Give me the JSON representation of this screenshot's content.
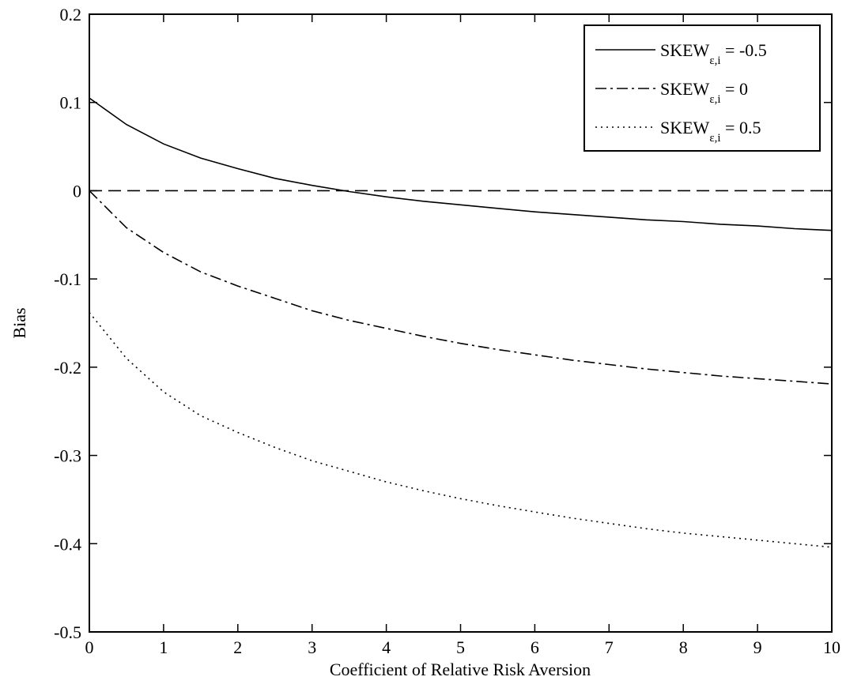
{
  "chart_data": {
    "type": "line",
    "title": "",
    "xlabel": "Coefficient of Relative Risk Aversion",
    "ylabel": "Bias",
    "xlim": [
      0,
      10
    ],
    "ylim": [
      -0.5,
      0.2
    ],
    "xticks": [
      0,
      1,
      2,
      3,
      4,
      5,
      6,
      7,
      8,
      9,
      10
    ],
    "xtick_labels": [
      "0",
      "1",
      "2",
      "3",
      "4",
      "5",
      "6",
      "7",
      "8",
      "9",
      "10"
    ],
    "yticks": [
      -0.5,
      -0.4,
      -0.3,
      -0.2,
      -0.1,
      0,
      0.1,
      0.2
    ],
    "ytick_labels": [
      "-0.5",
      "-0.4",
      "-0.3",
      "-0.2",
      "-0.1",
      "0",
      "0.1",
      "0.2"
    ],
    "grid": false,
    "legend_position": "top-right",
    "x": [
      0,
      0.5,
      1,
      1.5,
      2,
      2.5,
      3,
      3.5,
      4,
      4.5,
      5,
      5.5,
      6,
      6.5,
      7,
      7.5,
      8,
      8.5,
      9,
      9.5,
      10
    ],
    "series": [
      {
        "name": "SKEW",
        "name_sub": "ε,i",
        "name_suffix": " = -0.5",
        "style": "solid",
        "values": [
          0.105,
          0.075,
          0.053,
          0.037,
          0.025,
          0.014,
          0.006,
          -0.001,
          -0.007,
          -0.012,
          -0.016,
          -0.02,
          -0.024,
          -0.027,
          -0.03,
          -0.033,
          -0.035,
          -0.038,
          -0.04,
          -0.043,
          -0.045
        ]
      },
      {
        "name": "SKEW",
        "name_sub": "ε,i",
        "name_suffix": " = 0",
        "style": "dashdot",
        "values": [
          0.0,
          -0.042,
          -0.07,
          -0.092,
          -0.108,
          -0.122,
          -0.136,
          -0.147,
          -0.156,
          -0.165,
          -0.173,
          -0.18,
          -0.186,
          -0.192,
          -0.197,
          -0.202,
          -0.206,
          -0.21,
          -0.213,
          -0.216,
          -0.219
        ]
      },
      {
        "name": "SKEW",
        "name_sub": "ε,i",
        "name_suffix": " = 0.5",
        "style": "dotted",
        "values": [
          -0.138,
          -0.19,
          -0.228,
          -0.255,
          -0.274,
          -0.291,
          -0.306,
          -0.318,
          -0.33,
          -0.34,
          -0.349,
          -0.357,
          -0.364,
          -0.371,
          -0.377,
          -0.383,
          -0.388,
          -0.392,
          -0.396,
          -0.4,
          -0.404
        ]
      }
    ],
    "reference_line": {
      "y": 0,
      "style": "dashed"
    }
  }
}
